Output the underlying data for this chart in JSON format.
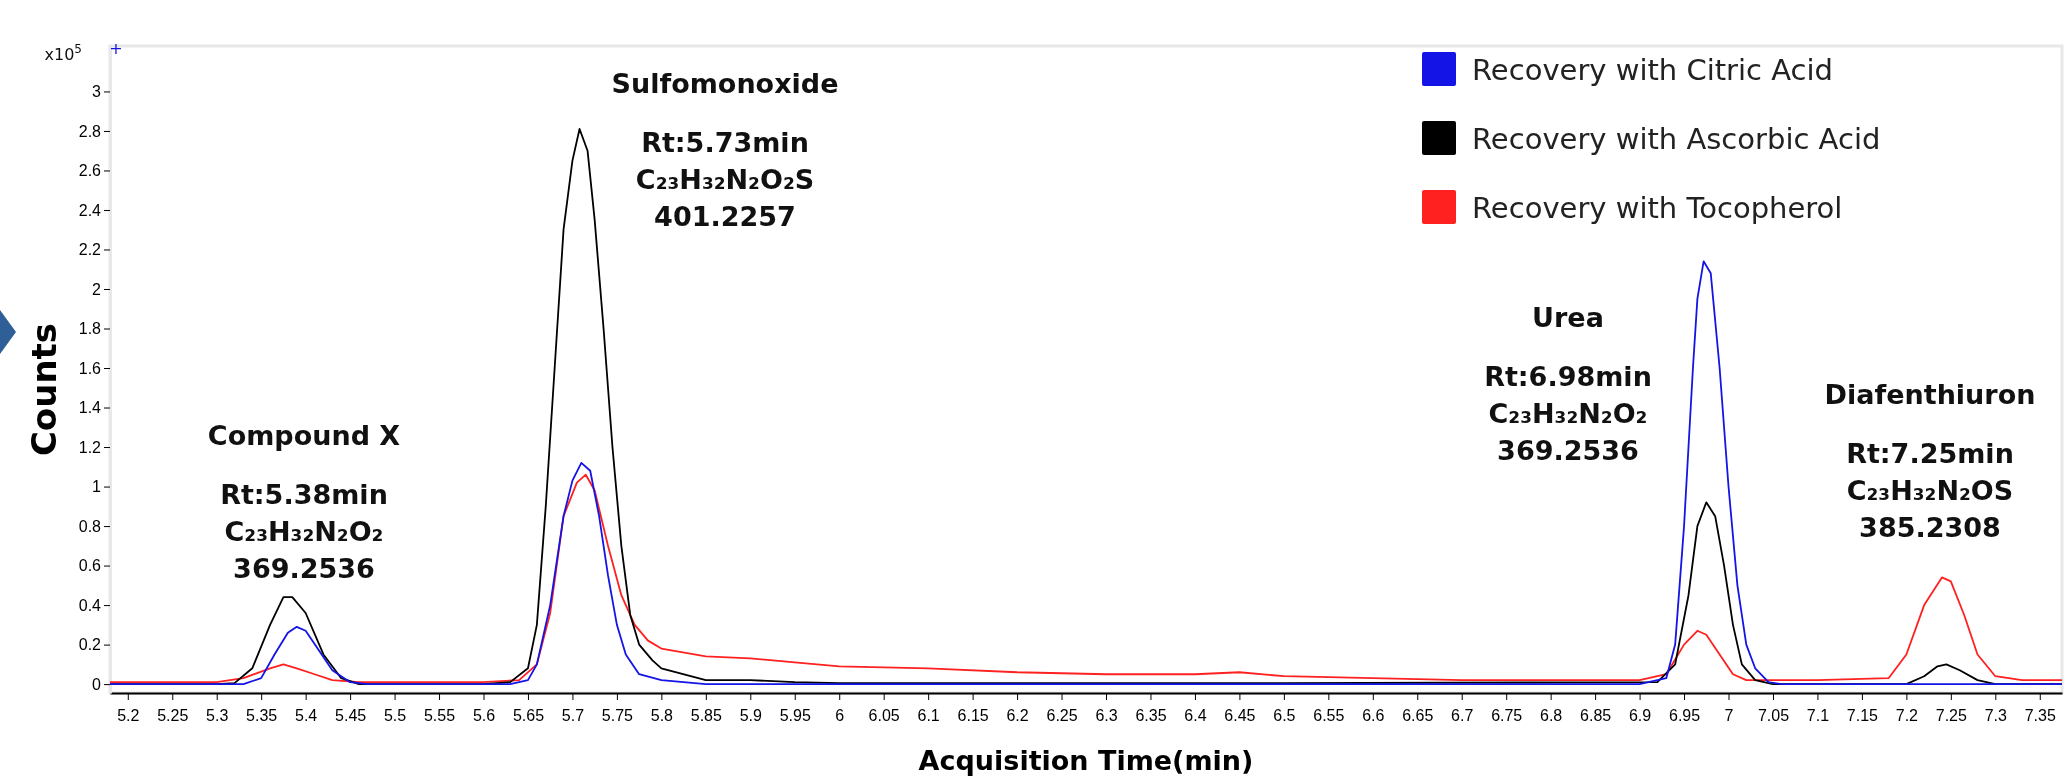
{
  "chart_data": {
    "type": "line",
    "xlabel": "Acquisition Time(min)",
    "ylabel": "Counts",
    "xlim": [
      5.18,
      7.375
    ],
    "ylim": [
      -0.045,
      3.23
    ],
    "xticks": [
      5.2,
      5.25,
      5.3,
      5.35,
      5.4,
      5.45,
      5.5,
      5.55,
      5.6,
      5.65,
      5.7,
      5.75,
      5.8,
      5.85,
      5.9,
      5.95,
      6,
      6.05,
      6.1,
      6.15,
      6.2,
      6.25,
      6.3,
      6.35,
      6.4,
      6.45,
      6.5,
      6.55,
      6.6,
      6.65,
      6.7,
      6.75,
      6.8,
      6.85,
      6.9,
      6.95,
      7,
      7.05,
      7.1,
      7.15,
      7.2,
      7.25,
      7.3,
      7.35
    ],
    "yticks": [
      0,
      0.2,
      0.4,
      0.6,
      0.8,
      1,
      1.2,
      1.4,
      1.6,
      1.8,
      2,
      2.2,
      2.4,
      2.6,
      2.8,
      3
    ],
    "grid": false,
    "legend": "top right",
    "line_style": "solid",
    "annotations": [
      "x10$^{5}$",
      "+",
      "Compound X\nRt:5.38min\nC₂₃H₃₂N₂O₂\n369.2536",
      "Sulfomonoxide\nRt:5.73min\nC₂₃H₃₂N₂O₂S\n401.2257",
      "Urea\nRt:6.98min\nC₂₃H₃₂N₂O₂\n369.2536",
      "Diafenthiuron\nRt:7.25min\nC₂₃H₃₂N₂OS\n385.2308"
    ],
    "series": [
      {
        "name": "Recovery with Citric Acid",
        "color": "#1414e6",
        "x": [
          5.18,
          5.33,
          5.35,
          5.365,
          5.38,
          5.39,
          5.4,
          5.415,
          5.43,
          5.45,
          5.47,
          5.63,
          5.65,
          5.66,
          5.675,
          5.69,
          5.7,
          5.71,
          5.72,
          5.73,
          5.74,
          5.75,
          5.76,
          5.775,
          5.8,
          5.85,
          6.9,
          6.93,
          6.94,
          6.95,
          6.96,
          6.965,
          6.972,
          6.98,
          6.99,
          7.0,
          7.01,
          7.02,
          7.03,
          7.045,
          7.06,
          7.375
        ],
        "values": [
          0,
          0,
          0.03,
          0.15,
          0.26,
          0.29,
          0.27,
          0.17,
          0.07,
          0.01,
          0,
          0,
          0.02,
          0.1,
          0.4,
          0.85,
          1.03,
          1.12,
          1.08,
          0.85,
          0.55,
          0.3,
          0.15,
          0.05,
          0.02,
          0,
          0,
          0.03,
          0.2,
          0.8,
          1.6,
          1.95,
          2.14,
          2.08,
          1.6,
          1.0,
          0.5,
          0.2,
          0.08,
          0.01,
          0,
          0
        ]
      },
      {
        "name": "Recovery with Ascorbic Acid",
        "color": "#000000",
        "x": [
          5.18,
          5.3,
          5.32,
          5.34,
          5.36,
          5.375,
          5.385,
          5.4,
          5.42,
          5.44,
          5.46,
          5.6,
          5.63,
          5.65,
          5.66,
          5.67,
          5.68,
          5.69,
          5.7,
          5.708,
          5.717,
          5.725,
          5.735,
          5.745,
          5.755,
          5.765,
          5.775,
          5.79,
          5.8,
          5.85,
          5.9,
          5.95,
          6.0,
          6.5,
          6.92,
          6.94,
          6.955,
          6.965,
          6.975,
          6.985,
          6.995,
          7.005,
          7.015,
          7.03,
          7.05,
          7.2,
          7.22,
          7.235,
          7.245,
          7.26,
          7.28,
          7.3,
          7.375
        ],
        "values": [
          0,
          0,
          0.005,
          0.08,
          0.3,
          0.44,
          0.44,
          0.36,
          0.15,
          0.03,
          0,
          0,
          0.01,
          0.08,
          0.3,
          0.9,
          1.6,
          2.3,
          2.65,
          2.81,
          2.7,
          2.35,
          1.8,
          1.2,
          0.7,
          0.35,
          0.2,
          0.12,
          0.08,
          0.02,
          0.02,
          0.01,
          0.005,
          0.005,
          0.01,
          0.1,
          0.45,
          0.8,
          0.92,
          0.85,
          0.6,
          0.3,
          0.1,
          0.02,
          0,
          0,
          0.04,
          0.09,
          0.1,
          0.07,
          0.02,
          0,
          0
        ]
      },
      {
        "name": "Recovery with Tocopherol",
        "color": "#ff2020",
        "x": [
          5.18,
          5.3,
          5.33,
          5.36,
          5.375,
          5.39,
          5.41,
          5.43,
          5.46,
          5.6,
          5.64,
          5.66,
          5.675,
          5.69,
          5.705,
          5.715,
          5.725,
          5.74,
          5.755,
          5.77,
          5.785,
          5.8,
          5.85,
          5.9,
          5.95,
          6.0,
          6.1,
          6.2,
          6.3,
          6.4,
          6.45,
          6.5,
          6.6,
          6.7,
          6.9,
          6.93,
          6.95,
          6.965,
          6.975,
          6.99,
          7.005,
          7.02,
          7.1,
          7.18,
          7.2,
          7.22,
          7.24,
          7.25,
          7.265,
          7.28,
          7.3,
          7.33,
          7.375
        ],
        "values": [
          0.01,
          0.01,
          0.03,
          0.08,
          0.1,
          0.08,
          0.05,
          0.02,
          0.01,
          0.01,
          0.02,
          0.1,
          0.36,
          0.85,
          1.02,
          1.06,
          0.98,
          0.7,
          0.45,
          0.3,
          0.22,
          0.18,
          0.14,
          0.13,
          0.11,
          0.09,
          0.08,
          0.06,
          0.05,
          0.05,
          0.06,
          0.04,
          0.03,
          0.02,
          0.02,
          0.05,
          0.2,
          0.27,
          0.25,
          0.15,
          0.05,
          0.02,
          0.02,
          0.03,
          0.15,
          0.4,
          0.54,
          0.52,
          0.35,
          0.15,
          0.04,
          0.02,
          0.02
        ]
      }
    ]
  }
}
